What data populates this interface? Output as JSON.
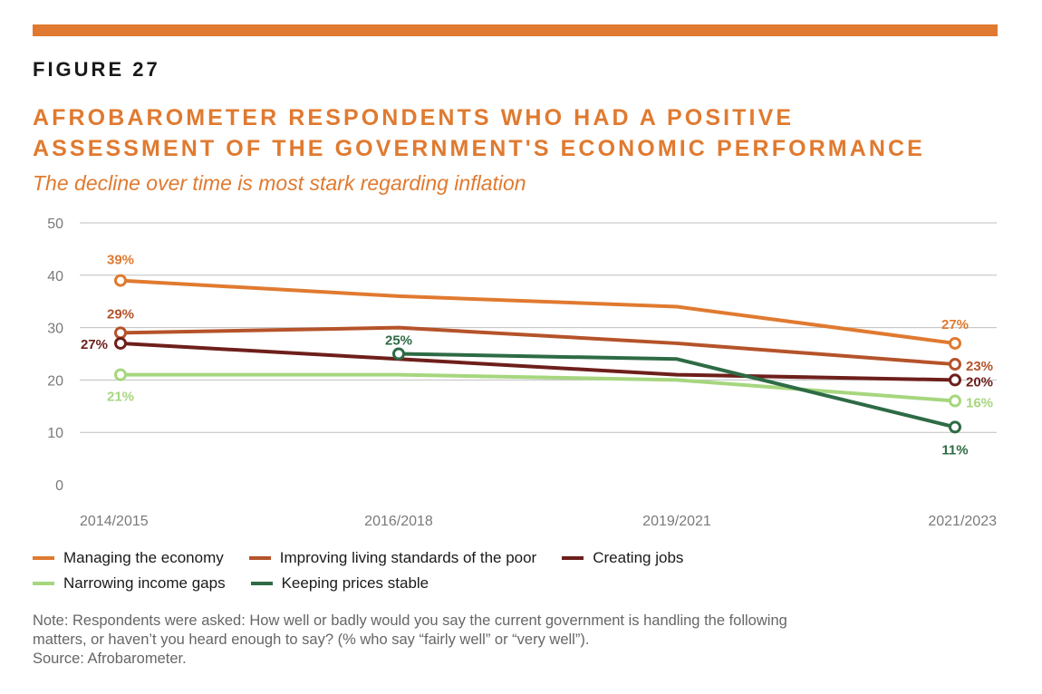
{
  "header": {
    "figure_label": "FIGURE 27",
    "title_line1": "AFROBAROMETER RESPONDENTS WHO HAD A POSITIVE",
    "title_line2": "ASSESSMENT OF THE GOVERNMENT'S ECONOMIC PERFORMANCE",
    "subtitle": "The decline over time is most stark regarding inflation"
  },
  "colors": {
    "accent": "#E07A30",
    "title": "#E07A30",
    "grid": "#bfbfbf",
    "axis_text": "#7a7a7a"
  },
  "chart_data": {
    "type": "line",
    "x": [
      "2014/2015",
      "2016/2018",
      "2019/2021",
      "2021/2023"
    ],
    "ylim": [
      0,
      50
    ],
    "yticks": [
      0,
      10,
      20,
      30,
      40,
      50
    ],
    "grid": true,
    "legend_position": "bottom-left",
    "series": [
      {
        "name": "Managing the economy",
        "color": "#E07A30",
        "values": [
          39,
          36,
          34,
          27
        ],
        "labels": [
          {
            "i": 0,
            "text": "39%"
          },
          {
            "i": 3,
            "text": "27%"
          }
        ]
      },
      {
        "name": "Improving living standards of the poor",
        "color": "#B5532A",
        "values": [
          29,
          30,
          27,
          23
        ],
        "labels": [
          {
            "i": 0,
            "text": "29%"
          },
          {
            "i": 3,
            "text": "23%"
          }
        ]
      },
      {
        "name": "Creating jobs",
        "color": "#6E1F1B",
        "values": [
          27,
          24,
          21,
          20
        ],
        "labels": [
          {
            "i": 0,
            "text": "27%"
          },
          {
            "i": 3,
            "text": "20%"
          }
        ]
      },
      {
        "name": "Narrowing income gaps",
        "color": "#A6D67E",
        "values": [
          21,
          21,
          20,
          16
        ],
        "labels": [
          {
            "i": 0,
            "text": "21%"
          },
          {
            "i": 3,
            "text": "16%"
          }
        ]
      },
      {
        "name": "Keeping prices stable",
        "color": "#2E6B45",
        "values": [
          null,
          25,
          24,
          11
        ],
        "labels": [
          {
            "i": 1,
            "text": "25%"
          },
          {
            "i": 3,
            "text": "11%"
          }
        ]
      }
    ]
  },
  "note": {
    "line1": "Note: Respondents were asked: How well or badly would you say the current government is handling the following",
    "line2": "matters, or haven’t you heard enough to say? (% who say “fairly well” or “very well”).",
    "source": "Source: Afrobarometer."
  }
}
